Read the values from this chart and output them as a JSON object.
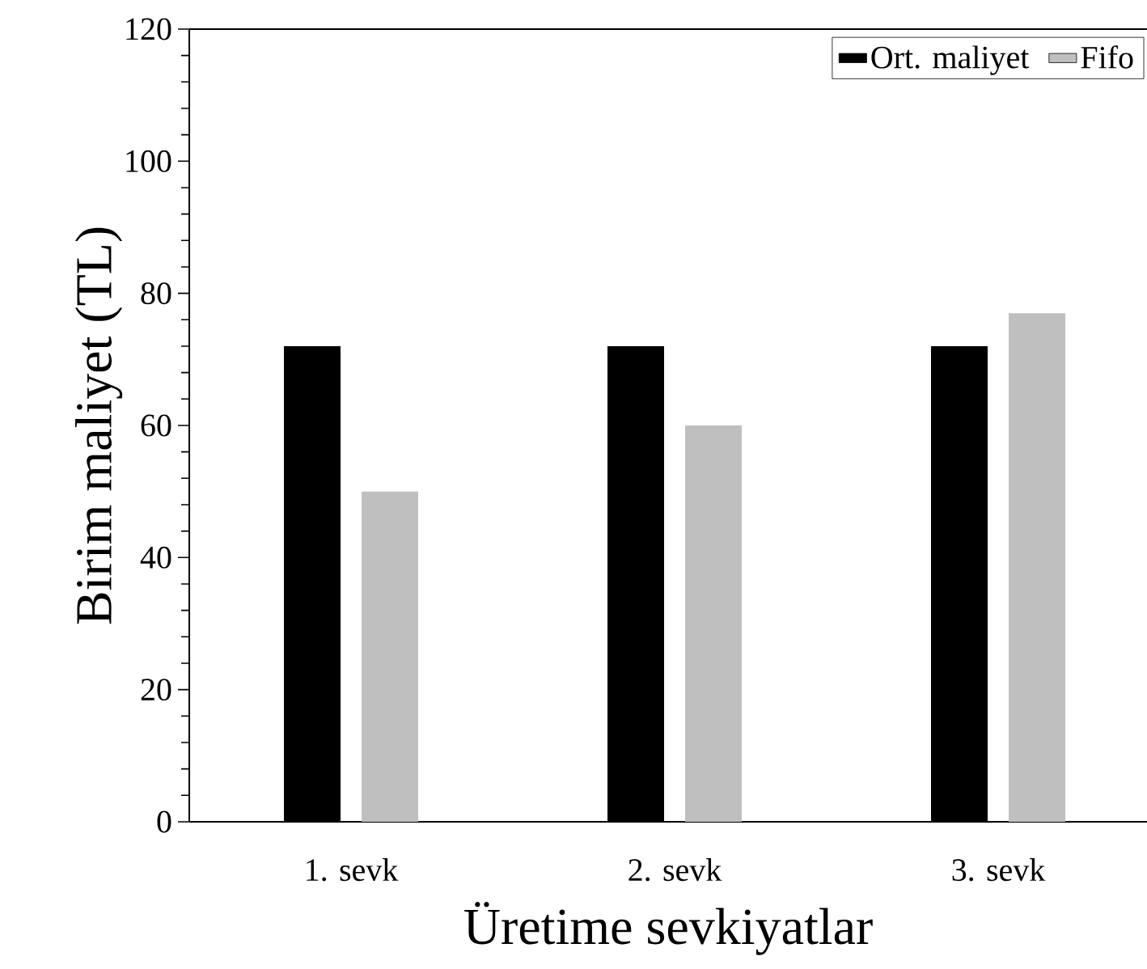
{
  "chart_data": {
    "type": "bar",
    "xlabel": "Üretime sevkiyatlar",
    "ylabel": "Birim maliyet (TL)",
    "categories": [
      "1. sevk",
      "2. sevk",
      "3. sevk"
    ],
    "series": [
      {
        "name": "Ort. maliyet",
        "color": "#000000",
        "values": [
          72,
          72,
          72
        ]
      },
      {
        "name": "Fifo",
        "color": "#bfbfbf",
        "values": [
          50,
          60,
          77
        ]
      }
    ],
    "ylim": [
      0,
      120
    ],
    "yticks": [
      0,
      20,
      40,
      60,
      80,
      100,
      120
    ],
    "grid": false,
    "legend": "top right"
  }
}
